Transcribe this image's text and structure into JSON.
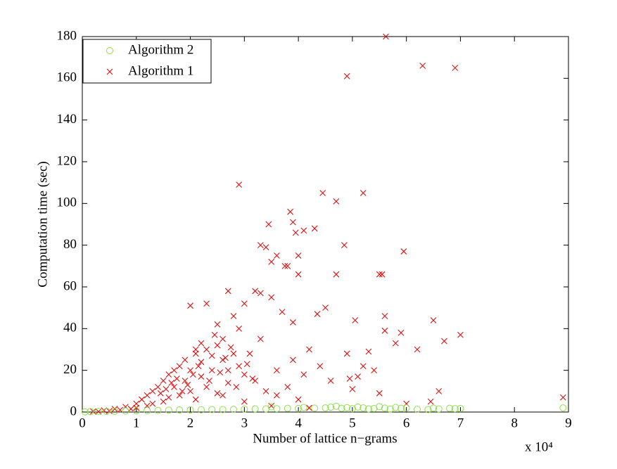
{
  "chart_data": {
    "type": "scatter",
    "xlabel": "Number of lattice n−grams",
    "ylabel": "Computation time (sec)",
    "x_multiplier": "x 10⁴",
    "xlim": [
      0,
      9
    ],
    "xticks": [
      0,
      1,
      2,
      3,
      4,
      5,
      6,
      7,
      8,
      9
    ],
    "ylim": [
      0,
      180
    ],
    "yticks": [
      0,
      20,
      40,
      60,
      80,
      100,
      120,
      140,
      160,
      180
    ],
    "legend": "top-left",
    "series": [
      {
        "name": "Algorithm 2",
        "color": "#8be04a",
        "marker": "circle",
        "x": [
          0.05,
          0.15,
          0.3,
          0.45,
          0.6,
          0.8,
          1.0,
          1.2,
          1.4,
          1.6,
          1.8,
          2.0,
          2.2,
          2.4,
          2.6,
          2.8,
          3.0,
          3.2,
          3.4,
          3.5,
          3.6,
          3.8,
          4.0,
          4.1,
          4.3,
          4.5,
          4.6,
          4.7,
          4.8,
          4.9,
          5.0,
          5.1,
          5.2,
          5.3,
          5.4,
          5.5,
          5.6,
          5.7,
          5.8,
          5.9,
          6.0,
          6.2,
          6.4,
          6.5,
          6.6,
          6.8,
          6.9,
          7.0,
          8.9
        ],
        "values": [
          0.1,
          0.2,
          0.3,
          0.3,
          0.4,
          0.5,
          0.6,
          0.7,
          0.8,
          0.9,
          1.0,
          1.0,
          1.1,
          1.2,
          1.2,
          1.3,
          1.4,
          1.5,
          1.5,
          2.5,
          1.6,
          1.8,
          1.7,
          2.2,
          1.9,
          2.0,
          2.3,
          2.8,
          1.8,
          2.1,
          1.6,
          2.4,
          2.0,
          1.5,
          1.7,
          2.6,
          1.9,
          1.4,
          2.2,
          1.8,
          2.0,
          1.3,
          1.2,
          1.9,
          1.5,
          1.8,
          1.6,
          1.7,
          2.0
        ]
      },
      {
        "name": "Algorithm 1",
        "color": "#dd1010",
        "marker": "x",
        "x": [
          5.62,
          4.9,
          6.3,
          6.9,
          2.9,
          4.45,
          5.2,
          4.7,
          3.85,
          3.45,
          3.9,
          4.1,
          3.95,
          4.3,
          3.3,
          3.4,
          3.6,
          4.85,
          5.95,
          3.5,
          3.8,
          4.0,
          3.75,
          4.0,
          4.7,
          5.5,
          5.55,
          3.2,
          3.3,
          2.7,
          3.0,
          3.5,
          3.7,
          4.5,
          4.35,
          3.9,
          5.6,
          5.6,
          5.05,
          5.9,
          6.5,
          7.0,
          6.2,
          6.7,
          5.8,
          4.9,
          5.3,
          5.2,
          5.1,
          4.95,
          5.4,
          5.0,
          5.5,
          6.0,
          6.6,
          6.45,
          8.9,
          2.0,
          2.3,
          2.5,
          2.45,
          2.8,
          2.2,
          2.6,
          2.1,
          0.2,
          0.4,
          0.6,
          0.8,
          1.0,
          1.1,
          1.2,
          1.3,
          1.4,
          1.5,
          1.6,
          1.7,
          1.8,
          1.9,
          2.0,
          2.1,
          2.2,
          2.3,
          2.4,
          2.5,
          2.6,
          2.7,
          2.8,
          2.9,
          3.0,
          3.2,
          3.4,
          3.6,
          3.8,
          4.0,
          1.0,
          1.2,
          1.5,
          1.8,
          2.0,
          2.3,
          2.6,
          3.0,
          3.5,
          4.2,
          1.7,
          1.9,
          2.2,
          2.4,
          2.7,
          0.5,
          0.3,
          0.7,
          0.9,
          1.3,
          1.6,
          2.1,
          2.5,
          3.1,
          3.3,
          2.9,
          2.75,
          3.6,
          4.1,
          4.4,
          4.6,
          4.2,
          3.9,
          1.45,
          1.55,
          1.65,
          1.75,
          1.85,
          1.95,
          2.05,
          2.15,
          2.35,
          2.55,
          2.65,
          2.85,
          3.05,
          3.15
        ],
        "values": [
          180,
          161,
          166,
          165,
          109,
          105,
          105,
          101,
          96,
          90,
          91,
          87,
          86,
          88,
          80,
          79,
          75,
          80,
          77,
          72,
          70,
          75,
          70,
          66,
          66,
          66,
          66,
          58,
          57,
          58,
          52,
          55,
          48,
          50,
          47,
          43,
          46,
          39,
          44,
          38,
          44,
          37,
          30,
          34,
          33,
          28,
          29,
          22,
          17,
          16,
          20,
          11,
          9,
          4,
          10,
          5,
          7,
          51,
          52,
          42,
          37,
          46,
          33,
          35,
          30,
          0.3,
          0.8,
          1.5,
          2.5,
          4,
          6,
          8,
          10,
          12,
          15,
          18,
          20,
          22,
          25,
          20,
          28,
          24,
          30,
          27,
          32,
          25,
          20,
          28,
          22,
          18,
          15,
          10,
          8,
          12,
          6,
          2,
          3,
          5,
          8,
          10,
          12,
          8,
          5,
          3,
          2,
          12,
          15,
          17,
          20,
          14,
          0.5,
          0.2,
          1,
          1.5,
          4,
          7,
          6,
          9,
          28,
          35,
          40,
          31,
          20,
          18,
          22,
          15,
          30,
          25,
          9,
          11,
          14,
          16,
          10,
          13,
          18,
          22,
          15,
          19,
          26,
          12,
          23,
          16
        ]
      }
    ]
  }
}
